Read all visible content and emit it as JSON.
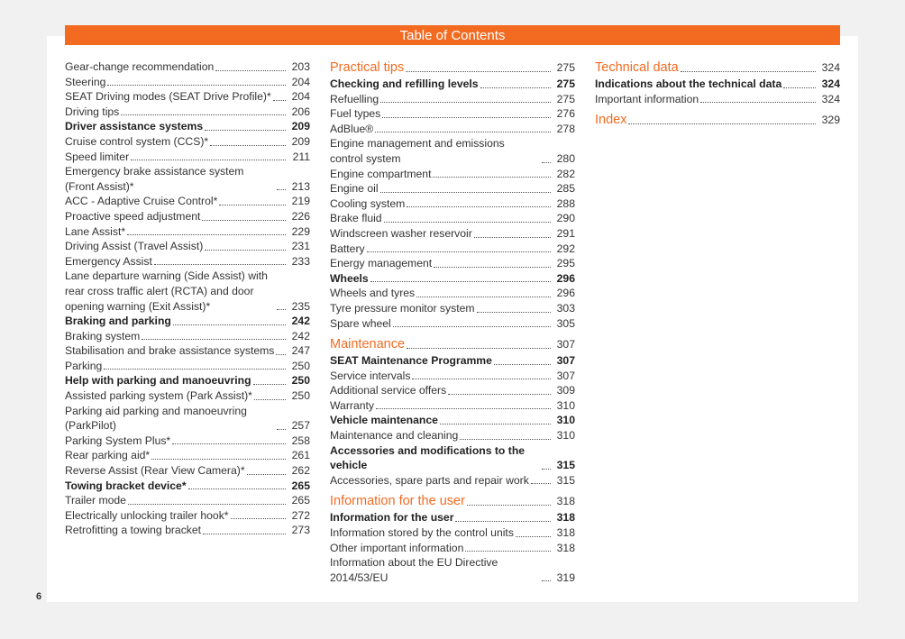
{
  "header": {
    "title": "Table of Contents"
  },
  "page_number": 6,
  "columns": [
    [
      {
        "text": "Gear-change recommendation",
        "page": 203,
        "style": "normal"
      },
      {
        "text": "Steering",
        "page": 204,
        "style": "normal"
      },
      {
        "text": "SEAT Driving modes (SEAT Drive Profile)*",
        "page": 204,
        "style": "normal"
      },
      {
        "text": "Driving tips",
        "page": 206,
        "style": "normal"
      },
      {
        "text": "Driver assistance systems",
        "page": 209,
        "style": "bold"
      },
      {
        "text": "Cruise control system (CCS)*",
        "page": 209,
        "style": "normal"
      },
      {
        "text": "Speed limiter",
        "page": 211,
        "style": "normal"
      },
      {
        "text": "Emergency brake assistance system (Front Assist)*",
        "page": 213,
        "style": "normal"
      },
      {
        "text": "ACC - Adaptive Cruise Control*",
        "page": 219,
        "style": "normal"
      },
      {
        "text": "Proactive speed adjustment",
        "page": 226,
        "style": "normal"
      },
      {
        "text": "Lane Assist*",
        "page": 229,
        "style": "normal"
      },
      {
        "text": "Driving Assist (Travel Assist)",
        "page": 231,
        "style": "normal"
      },
      {
        "text": "Emergency Assist",
        "page": 233,
        "style": "normal"
      },
      {
        "text": "Lane departure warning (Side Assist) with rear cross traffic alert (RCTA) and door opening warning (Exit Assist)*",
        "page": 235,
        "style": "normal"
      },
      {
        "text": "Braking and parking",
        "page": 242,
        "style": "bold"
      },
      {
        "text": "Braking system",
        "page": 242,
        "style": "normal"
      },
      {
        "text": "Stabilisation and brake assistance systems",
        "page": 247,
        "style": "normal"
      },
      {
        "text": "Parking",
        "page": 250,
        "style": "normal"
      },
      {
        "text": "Help with parking and manoeuvring",
        "page": 250,
        "style": "bold"
      },
      {
        "text": "Assisted parking system (Park Assist)*",
        "page": 250,
        "style": "normal"
      },
      {
        "text": "Parking aid parking and manoeuvring (ParkPilot)",
        "page": 257,
        "style": "normal"
      },
      {
        "text": "Parking System Plus*",
        "page": 258,
        "style": "normal"
      },
      {
        "text": "Rear parking aid*",
        "page": 261,
        "style": "normal"
      },
      {
        "text": "Reverse Assist (Rear View Camera)*",
        "page": 262,
        "style": "normal"
      },
      {
        "text": "Towing bracket device*",
        "page": 265,
        "style": "bold"
      },
      {
        "text": "Trailer mode",
        "page": 265,
        "style": "normal"
      },
      {
        "text": "Electrically unlocking trailer hook*",
        "page": 272,
        "style": "normal"
      },
      {
        "text": "Retrofitting a towing bracket",
        "page": 273,
        "style": "normal"
      }
    ],
    [
      {
        "text": "Practical tips",
        "page": 275,
        "style": "heading"
      },
      {
        "text": "Checking and refilling levels",
        "page": 275,
        "style": "bold"
      },
      {
        "text": "Refuelling",
        "page": 275,
        "style": "normal"
      },
      {
        "text": "Fuel types",
        "page": 276,
        "style": "normal"
      },
      {
        "text": "AdBlue®",
        "page": 278,
        "style": "normal"
      },
      {
        "text": "Engine management and emissions control system",
        "page": 280,
        "style": "normal"
      },
      {
        "text": "Engine compartment",
        "page": 282,
        "style": "normal"
      },
      {
        "text": "Engine oil",
        "page": 285,
        "style": "normal"
      },
      {
        "text": "Cooling system",
        "page": 288,
        "style": "normal"
      },
      {
        "text": "Brake fluid",
        "page": 290,
        "style": "normal"
      },
      {
        "text": "Windscreen washer reservoir",
        "page": 291,
        "style": "normal"
      },
      {
        "text": "Battery",
        "page": 292,
        "style": "normal"
      },
      {
        "text": "Energy management",
        "page": 295,
        "style": "normal"
      },
      {
        "text": "Wheels",
        "page": 296,
        "style": "bold"
      },
      {
        "text": "Wheels and tyres",
        "page": 296,
        "style": "normal"
      },
      {
        "text": "Tyre pressure monitor system",
        "page": 303,
        "style": "normal"
      },
      {
        "text": "Spare wheel",
        "page": 305,
        "style": "normal"
      },
      {
        "text": "Maintenance",
        "page": 307,
        "style": "heading"
      },
      {
        "text": "SEAT Maintenance Programme",
        "page": 307,
        "style": "bold"
      },
      {
        "text": "Service intervals",
        "page": 307,
        "style": "normal"
      },
      {
        "text": "Additional service offers",
        "page": 309,
        "style": "normal"
      },
      {
        "text": "Warranty",
        "page": 310,
        "style": "normal"
      },
      {
        "text": "Vehicle maintenance",
        "page": 310,
        "style": "bold"
      },
      {
        "text": "Maintenance and cleaning",
        "page": 310,
        "style": "normal"
      },
      {
        "text": "Accessories and modifications to the vehicle",
        "page": 315,
        "style": "bold"
      },
      {
        "text": "Accessories, spare parts and repair work",
        "page": 315,
        "style": "normal"
      },
      {
        "text": "Information for the user",
        "page": 318,
        "style": "heading"
      },
      {
        "text": "Information for the user",
        "page": 318,
        "style": "bold"
      },
      {
        "text": "Information stored by the control units",
        "page": 318,
        "style": "normal"
      },
      {
        "text": "Other important information",
        "page": 318,
        "style": "normal"
      },
      {
        "text": "Information about the EU Directive 2014/53/EU",
        "page": 319,
        "style": "normal"
      }
    ],
    [
      {
        "text": "Technical data",
        "page": 324,
        "style": "heading"
      },
      {
        "text": "Indications about the technical data",
        "page": 324,
        "style": "bold"
      },
      {
        "text": "Important information",
        "page": 324,
        "style": "normal"
      },
      {
        "text": "Index",
        "page": 329,
        "style": "heading"
      }
    ]
  ]
}
